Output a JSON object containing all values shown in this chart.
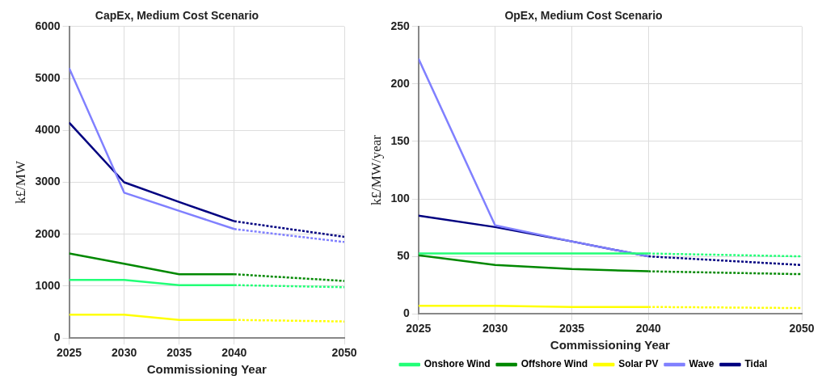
{
  "chart_data": [
    {
      "type": "line",
      "title": "CapEx, Medium Cost Scenario",
      "xlabel": "Commissioning Year",
      "ylabel": "k£/MW",
      "x": [
        2025,
        2030,
        2035,
        2040,
        2050
      ],
      "xlim": [
        2025,
        2050
      ],
      "xticks": [
        2025,
        2030,
        2035,
        2040,
        2050
      ],
      "ylim": [
        0,
        6000
      ],
      "yticks": [
        0,
        1000,
        2000,
        3000,
        4000,
        5000,
        6000
      ],
      "grid": true,
      "legend": false,
      "marker": "none",
      "series": [
        {
          "color": "#22ff77",
          "values": [
            1120,
            1120,
            1020,
            1020,
            null
          ],
          "line_style": "solid"
        },
        {
          "color": "#22ff77",
          "values": [
            null,
            null,
            null,
            1020,
            980
          ],
          "line_style": "dotted"
        },
        {
          "color": "#008800",
          "values": [
            1630,
            1430,
            1230,
            1230,
            null
          ],
          "line_style": "solid"
        },
        {
          "color": "#008800",
          "values": [
            null,
            null,
            null,
            1230,
            1100
          ],
          "line_style": "dotted"
        },
        {
          "color": "#ffff00",
          "values": [
            450,
            450,
            350,
            350,
            null
          ],
          "line_style": "solid"
        },
        {
          "color": "#ffff00",
          "values": [
            null,
            null,
            null,
            350,
            320
          ],
          "line_style": "dotted"
        },
        {
          "color": "#8080ff",
          "values": [
            5200,
            2800,
            2450,
            2100,
            null
          ],
          "line_style": "solid"
        },
        {
          "color": "#8080ff",
          "values": [
            null,
            null,
            null,
            2100,
            1850
          ],
          "line_style": "dotted"
        },
        {
          "color": "#000080",
          "values": [
            4150,
            3000,
            2620,
            2250,
            null
          ],
          "line_style": "solid"
        },
        {
          "color": "#000080",
          "values": [
            null,
            null,
            null,
            2250,
            1950
          ],
          "line_style": "dotted"
        }
      ]
    },
    {
      "type": "line",
      "title": "OpEx, Medium Cost Scenario",
      "xlabel": "Commissioning Year",
      "ylabel": "k£/MW/year",
      "x": [
        2025,
        2030,
        2035,
        2040,
        2050
      ],
      "xlim": [
        2025,
        2050
      ],
      "xticks": [
        2025,
        2030,
        2035,
        2040,
        2050
      ],
      "ylim": [
        0,
        250
      ],
      "yticks": [
        0,
        50,
        100,
        150,
        200,
        250
      ],
      "grid": true,
      "legend": "bottom",
      "marker": "none",
      "series": [
        {
          "name": "Onshore Wind",
          "color": "#22ff77",
          "values": [
            52.5,
            52.5,
            52.5,
            52.5,
            null
          ],
          "line_style": "solid"
        },
        {
          "color": "#22ff77",
          "values": [
            null,
            null,
            null,
            52.5,
            50
          ],
          "line_style": "dotted"
        },
        {
          "name": "Offshore Wind",
          "color": "#008800",
          "values": [
            51,
            42.5,
            39,
            37,
            null
          ],
          "line_style": "solid"
        },
        {
          "color": "#008800",
          "values": [
            null,
            null,
            null,
            37,
            34.5
          ],
          "line_style": "dotted"
        },
        {
          "name": "Solar PV",
          "color": "#ffff00",
          "values": [
            7,
            7,
            6,
            6,
            null
          ],
          "line_style": "solid"
        },
        {
          "color": "#ffff00",
          "values": [
            null,
            null,
            null,
            6,
            5
          ],
          "line_style": "dotted"
        },
        {
          "name": "Wave",
          "color": "#8080ff",
          "values": [
            222,
            77,
            63,
            50,
            null
          ],
          "line_style": "solid"
        },
        {
          "name": "Tidal",
          "color": "#000080",
          "values": [
            85.5,
            75.5,
            63,
            50,
            null
          ],
          "line_style": "solid"
        },
        {
          "color": "#000080",
          "values": [
            null,
            null,
            null,
            50,
            42.5
          ],
          "line_style": "dotted"
        }
      ]
    }
  ]
}
